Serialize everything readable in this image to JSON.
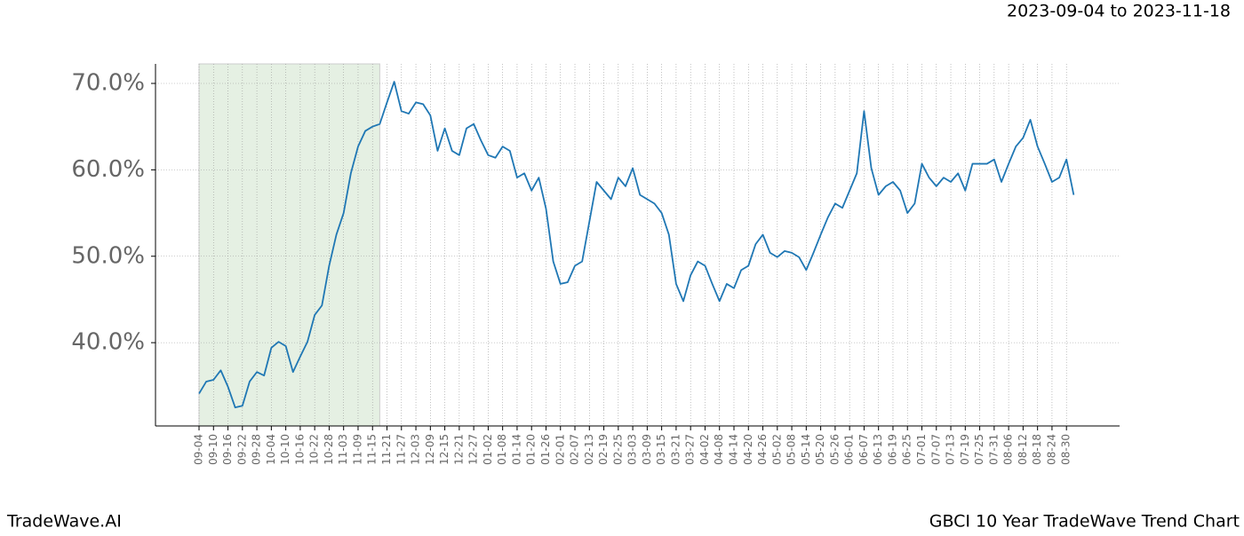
{
  "chart_data": {
    "type": "line",
    "header": "2023-09-04 to 2023-11-18",
    "footer_left": "TradeWave.AI",
    "footer_right": "GBCI 10 Year TradeWave Trend Chart",
    "categories": [
      "09-04",
      null,
      "09-10",
      null,
      "09-16",
      null,
      "09-22",
      null,
      "09-28",
      null,
      "10-04",
      null,
      "10-10",
      null,
      "10-16",
      null,
      "10-22",
      null,
      "10-28",
      null,
      "11-03",
      null,
      "11-09",
      null,
      "11-15",
      null,
      "11-21",
      null,
      "11-27",
      null,
      "12-03",
      null,
      "12-09",
      null,
      "12-15",
      null,
      "12-21",
      null,
      "12-27",
      null,
      "01-02",
      null,
      "01-08",
      null,
      "01-14",
      null,
      "01-20",
      null,
      "01-26",
      null,
      "02-01",
      null,
      "02-07",
      null,
      "02-13",
      null,
      "02-19",
      null,
      "02-25",
      null,
      "03-03",
      null,
      "03-09",
      null,
      "03-15",
      null,
      "03-21",
      null,
      "03-27",
      null,
      "04-02",
      null,
      "04-08",
      null,
      "04-14",
      null,
      "04-20",
      null,
      "04-26",
      null,
      "05-02",
      null,
      "05-08",
      null,
      "05-14",
      null,
      "05-20",
      null,
      "05-26",
      null,
      "06-01",
      null,
      "06-07",
      null,
      "06-13",
      null,
      "06-19",
      null,
      "06-25",
      null,
      "07-01",
      null,
      "07-07",
      null,
      "07-13",
      null,
      "07-19",
      null,
      "07-25",
      null,
      "07-31",
      null,
      "08-06",
      null,
      "08-12",
      null,
      "08-18",
      null,
      "08-24",
      null,
      "08-30",
      null
    ],
    "values": [
      34.1,
      35.5,
      35.7,
      36.8,
      34.9,
      32.5,
      32.7,
      35.5,
      36.6,
      36.2,
      39.4,
      40.1,
      39.6,
      36.6,
      38.4,
      40.1,
      43.2,
      44.3,
      48.9,
      52.5,
      55.0,
      59.6,
      62.7,
      64.5,
      65.0,
      65.3,
      67.8,
      70.2,
      66.8,
      66.5,
      67.8,
      67.6,
      66.3,
      62.2,
      64.8,
      62.2,
      61.7,
      64.8,
      65.3,
      63.4,
      61.7,
      61.4,
      62.7,
      62.2,
      59.1,
      59.6,
      57.6,
      59.1,
      55.5,
      49.4,
      46.8,
      47.0,
      48.9,
      49.4,
      54.0,
      58.6,
      57.6,
      56.6,
      59.1,
      58.1,
      60.2,
      57.1,
      56.6,
      56.1,
      55.0,
      52.5,
      46.8,
      44.8,
      47.8,
      49.4,
      48.9,
      46.8,
      44.8,
      46.8,
      46.3,
      48.4,
      48.9,
      51.4,
      52.5,
      50.4,
      49.9,
      50.6,
      50.4,
      49.9,
      48.4,
      50.4,
      52.5,
      54.5,
      56.1,
      55.6,
      57.6,
      59.6,
      66.8,
      60.2,
      57.1,
      58.1,
      58.6,
      57.6,
      55.0,
      56.1,
      60.7,
      59.1,
      58.1,
      59.1,
      58.6,
      59.6,
      57.6,
      60.7,
      60.7,
      60.7,
      61.2,
      58.6,
      60.7,
      62.7,
      63.7,
      65.8,
      62.7,
      60.7,
      58.6,
      59.1,
      61.2,
      57.1
    ],
    "color": "#1f77b4",
    "highlight_range": [
      0,
      25
    ],
    "highlight_color": "#e5f0e3",
    "ylim": [
      30.36,
      72.26
    ],
    "yticks": [
      {
        "value": 40,
        "label": "40.0%"
      },
      {
        "value": 50,
        "label": "50.0%"
      },
      {
        "value": 60,
        "label": "60.0%"
      },
      {
        "value": 70,
        "label": "70.0%"
      }
    ],
    "grid": true
  }
}
